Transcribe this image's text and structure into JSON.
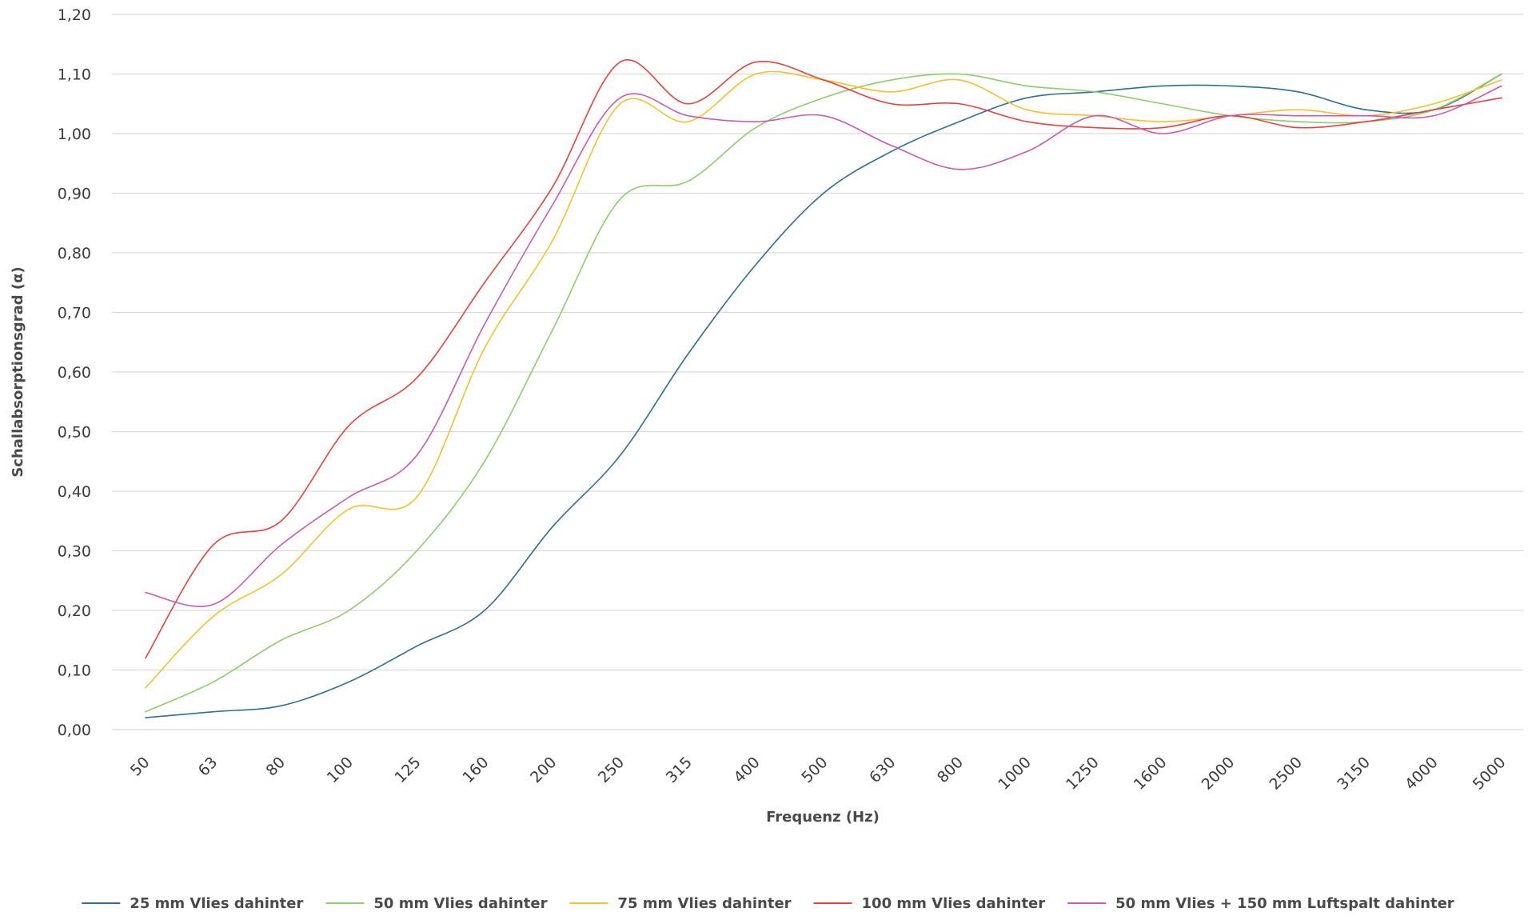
{
  "chart_data": {
    "type": "line",
    "title": "",
    "xlabel": "Frequenz (Hz)",
    "ylabel": "Schallabsorptionsgrad (α)",
    "categories": [
      "50",
      "63",
      "80",
      "100",
      "125",
      "160",
      "200",
      "250",
      "315",
      "400",
      "500",
      "630",
      "800",
      "1000",
      "1250",
      "1600",
      "2000",
      "2500",
      "3150",
      "4000",
      "5000"
    ],
    "ylim": [
      0,
      1.2
    ],
    "yticks": [
      0,
      0.1,
      0.2,
      0.3,
      0.4,
      0.5,
      0.6,
      0.7,
      0.8,
      0.9,
      1.0,
      1.1,
      1.2
    ],
    "ytick_labels": [
      "0,00",
      "0,10",
      "0,20",
      "0,30",
      "0,40",
      "0,50",
      "0,60",
      "0,70",
      "0,80",
      "0,90",
      "1,00",
      "1,10",
      "1,20"
    ],
    "grid": true,
    "legend_position": "bottom",
    "series": [
      {
        "name": "25 mm Vlies dahinter",
        "color": "#2e6e8e",
        "values": [
          0.02,
          0.03,
          0.04,
          0.08,
          0.14,
          0.2,
          0.34,
          0.46,
          0.63,
          0.78,
          0.9,
          0.97,
          1.02,
          1.06,
          1.07,
          1.08,
          1.08,
          1.07,
          1.04,
          1.04,
          1.1
        ]
      },
      {
        "name": "50 mm Vlies dahinter",
        "color": "#8dcc6a",
        "values": [
          0.03,
          0.08,
          0.15,
          0.2,
          0.3,
          0.45,
          0.67,
          0.89,
          0.92,
          1.01,
          1.06,
          1.09,
          1.1,
          1.08,
          1.07,
          1.05,
          1.03,
          1.02,
          1.02,
          1.04,
          1.1
        ]
      },
      {
        "name": "75 mm Vlies dahinter",
        "color": "#f7bf2a",
        "values": [
          0.07,
          0.19,
          0.26,
          0.37,
          0.39,
          0.64,
          0.82,
          1.05,
          1.02,
          1.1,
          1.09,
          1.07,
          1.09,
          1.04,
          1.03,
          1.02,
          1.03,
          1.04,
          1.03,
          1.05,
          1.09
        ]
      },
      {
        "name": "100 mm Vlies dahinter",
        "color": "#e8403c",
        "values": [
          0.12,
          0.31,
          0.35,
          0.51,
          0.59,
          0.75,
          0.91,
          1.12,
          1.05,
          1.12,
          1.09,
          1.05,
          1.05,
          1.02,
          1.01,
          1.01,
          1.03,
          1.01,
          1.02,
          1.04,
          1.06
        ]
      },
      {
        "name": "50 mm Vlies  + 150 mm Luftspalt dahinter",
        "color": "#c85ab3",
        "values": [
          0.23,
          0.21,
          0.31,
          0.39,
          0.46,
          0.68,
          0.88,
          1.06,
          1.03,
          1.02,
          1.03,
          0.98,
          0.94,
          0.97,
          1.03,
          1.0,
          1.03,
          1.03,
          1.03,
          1.03,
          1.08
        ]
      }
    ]
  }
}
